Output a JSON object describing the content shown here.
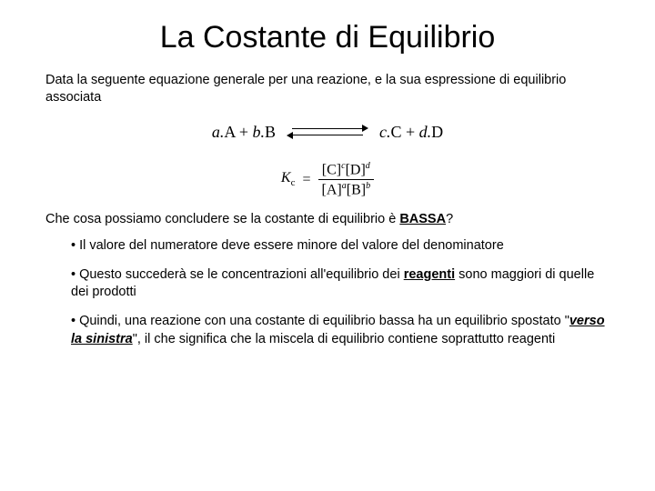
{
  "title": "La Costante di Equilibrio",
  "intro": "Data la seguente equazione generale per una reazione, e la sua espressione di equilibrio associata",
  "reaction": {
    "lhs_a": "a.",
    "lhs_A": "A",
    "plus1": " + ",
    "lhs_b": "b.",
    "lhs_B": "B",
    "rhs_c": "c.",
    "rhs_C": "C",
    "plus2": " + ",
    "rhs_d": "d.",
    "rhs_D": "D"
  },
  "kc": {
    "K": "K",
    "c": "c",
    "eq": "=",
    "num_open1": "[C]",
    "num_exp1": "c",
    "num_open2": "[D]",
    "num_exp2": "d",
    "den_open1": "[A]",
    "den_exp1": "a",
    "den_open2": "[B]",
    "den_exp2": "b"
  },
  "question_pre": "Che cosa possiamo concludere se la costante di equilibrio è ",
  "question_emph": "BASSA",
  "question_post": "?",
  "bullets": {
    "b1": "Il valore del numeratore deve essere minore del valore del denominatore",
    "b2_pre": "Questo succederà se le concentrazioni all'equilibrio dei ",
    "b2_emph": "reagenti",
    "b2_post": " sono maggiori di quelle dei prodotti",
    "b3_pre": "Quindi, una reazione con una costante di equilibrio bassa ha un equilibrio spostato \"",
    "b3_emph": "verso la sinistra",
    "b3_post": "\", il che significa che la miscela di equilibrio contiene soprattutto reagenti"
  }
}
